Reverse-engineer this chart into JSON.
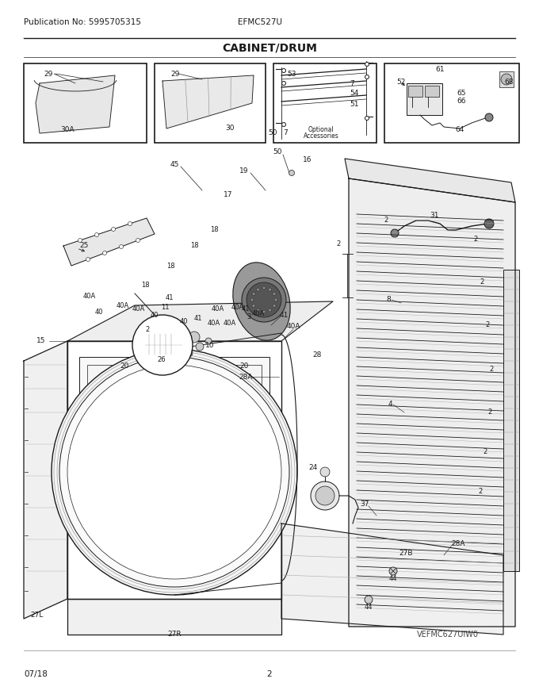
{
  "pub_no": "Publication No: 5995705315",
  "model": "EFMC527U",
  "title": "CABINET/DRUM",
  "date": "07/18",
  "page": "2",
  "watermark": "VEFMC627UIW0",
  "bg_color": "#ffffff",
  "line_color": "#1a1a1a",
  "gray": "#888888",
  "lightgray": "#cccccc",
  "fig_width": 6.8,
  "fig_height": 8.8,
  "dpi": 100,
  "header_fontsize": 7.5,
  "title_fontsize": 10,
  "label_fontsize": 6.5,
  "footer_fontsize": 7.5
}
